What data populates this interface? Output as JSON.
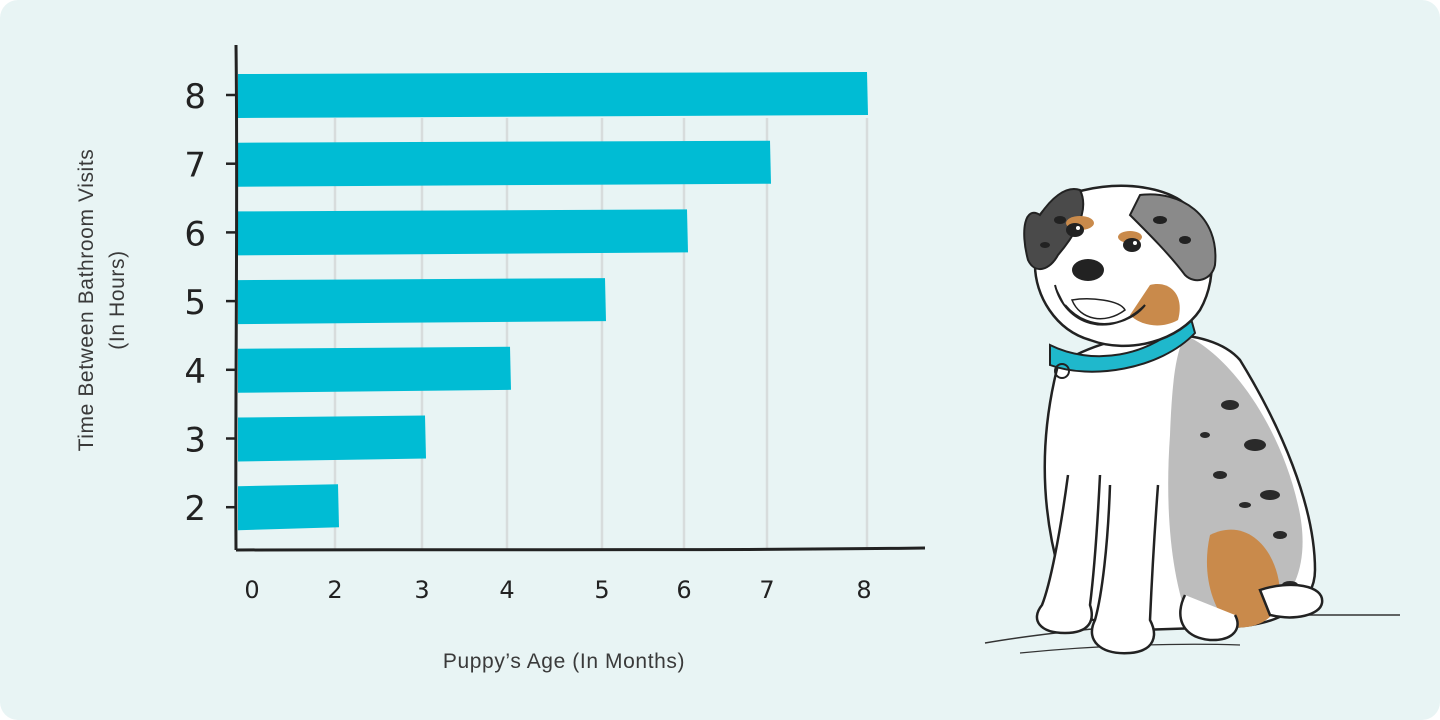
{
  "chart_data": {
    "type": "bar",
    "orientation": "horizontal",
    "ylabel_lines": [
      "Time Between Bathroom Visits",
      "(In Hours)"
    ],
    "xlabel": "Puppy’s Age (In Months)",
    "x_ticks": [
      "0",
      "2",
      "3",
      "4",
      "5",
      "6",
      "7",
      "8"
    ],
    "categories": [
      "8",
      "7",
      "6",
      "5",
      "4",
      "3",
      "2"
    ],
    "values": [
      8,
      7,
      6,
      5,
      4,
      3,
      2
    ],
    "grid": "vertical",
    "bar_color": "#00bcd4"
  },
  "colors": {
    "background": "#e8f4f4",
    "axis": "#222222",
    "grid": "#d7dcdc",
    "collar": "#1fb8cc",
    "tan": "#c98a4b",
    "merle": "#bdbdbd"
  },
  "illustration": {
    "icon": "australian-shepherd-puppy-illustration"
  }
}
